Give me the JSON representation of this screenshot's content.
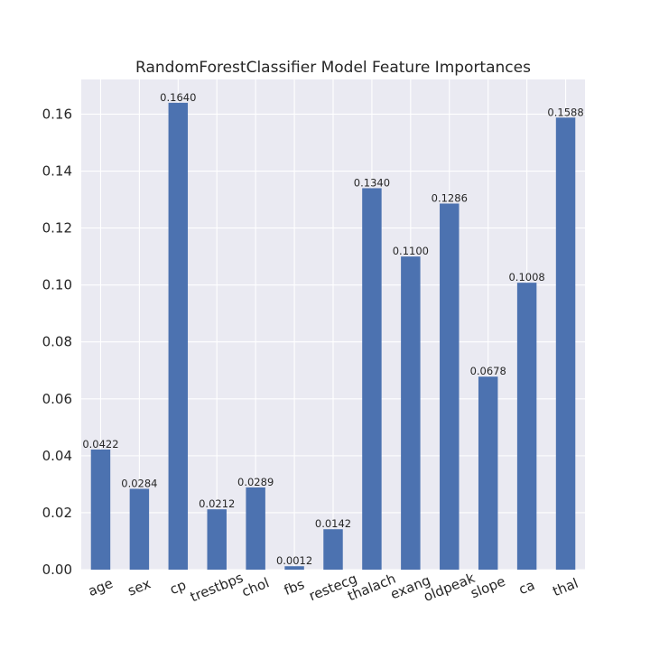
{
  "chart_data": {
    "type": "bar",
    "title": "RandomForestClassifier Model Feature Importances",
    "xlabel": "",
    "ylabel": "",
    "categories": [
      "age",
      "sex",
      "cp",
      "trestbps",
      "chol",
      "fbs",
      "restecg",
      "thalach",
      "exang",
      "oldpeak",
      "slope",
      "ca",
      "thal"
    ],
    "values": [
      0.0422,
      0.0284,
      0.164,
      0.0212,
      0.0289,
      0.0012,
      0.0142,
      0.134,
      0.11,
      0.1286,
      0.0678,
      0.1008,
      0.1588
    ],
    "value_labels": [
      "0.0422",
      "0.0284",
      "0.1640",
      "0.0212",
      "0.0289",
      "0.0012",
      "0.0142",
      "0.1340",
      "0.1100",
      "0.1286",
      "0.0678",
      "0.1008",
      "0.1588"
    ],
    "yticks": [
      0.0,
      0.02,
      0.04,
      0.06,
      0.08,
      0.1,
      0.12,
      0.14,
      0.16
    ],
    "ytick_labels": [
      "0.00",
      "0.02",
      "0.04",
      "0.06",
      "0.08",
      "0.10",
      "0.12",
      "0.14",
      "0.16"
    ],
    "ylim": [
      0,
      0.1722
    ],
    "grid": true,
    "colors": {
      "bar": "#4c72b0",
      "plot_background": "#eaeaf2",
      "grid": "#ffffff",
      "text": "#262626"
    }
  }
}
